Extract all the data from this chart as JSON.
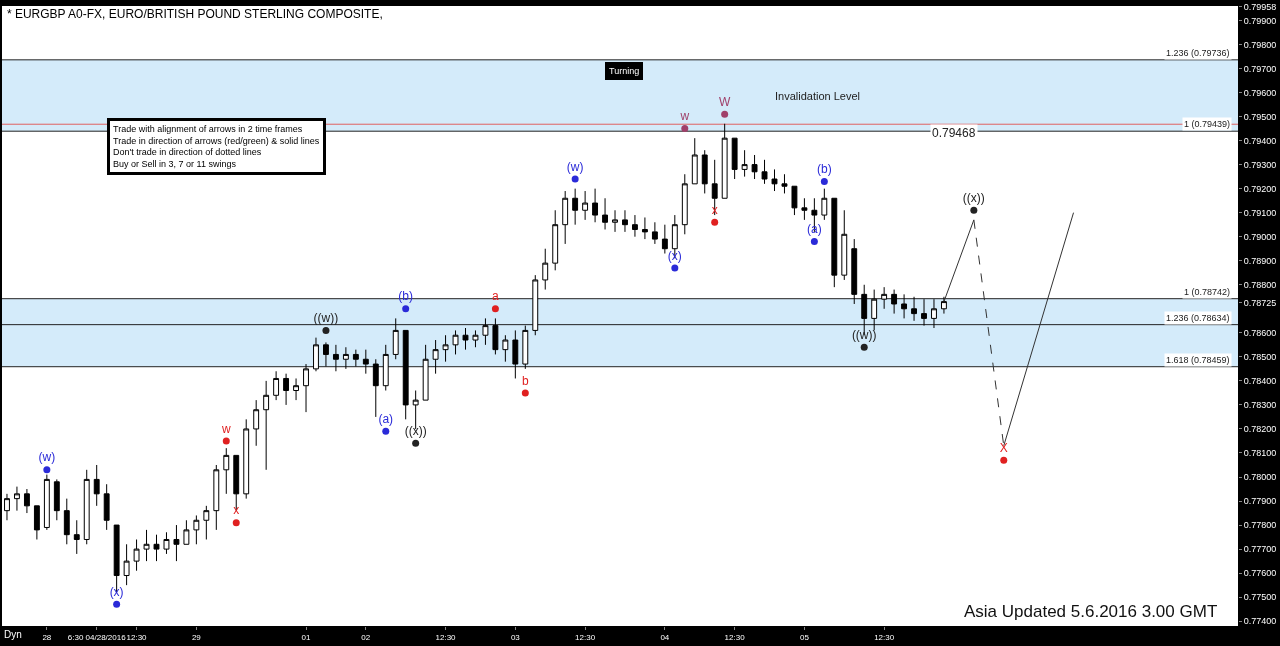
{
  "chart_data": {
    "type": "candlestick",
    "title": "* EURGBP A0-FX, EURO/BRITISH POUND STERLING COMPOSITE,",
    "color": "#000000",
    "categories": [
      null,
      null,
      null,
      null,
      "28",
      null,
      null,
      null,
      null,
      "6:30 04/28/2016",
      null,
      null,
      null,
      "12:30",
      null,
      null,
      null,
      null,
      null,
      "29",
      null,
      null,
      null,
      null,
      null,
      null,
      null,
      null,
      null,
      null,
      "01",
      null,
      null,
      null,
      null,
      null,
      "02",
      null,
      null,
      null,
      null,
      null,
      null,
      null,
      "12:30",
      null,
      null,
      null,
      null,
      null,
      null,
      "03",
      null,
      null,
      null,
      null,
      null,
      null,
      "12:30",
      null,
      null,
      null,
      null,
      null,
      null,
      null,
      "04",
      null,
      null,
      null,
      null,
      null,
      null,
      "12:30",
      null,
      null,
      null,
      null,
      null,
      null,
      "05",
      null,
      null,
      null,
      null,
      null,
      null,
      null,
      "12:30",
      null,
      null,
      null,
      null,
      null,
      null,
      null,
      null,
      null,
      null,
      null,
      null,
      null,
      null,
      null,
      null,
      null,
      null,
      null,
      null,
      null,
      null,
      null,
      null,
      null,
      null,
      null,
      null,
      null,
      null,
      null,
      null,
      null,
      null,
      null
    ],
    "ohlc": [
      [
        0.7786,
        0.7793,
        0.7782,
        0.7791
      ],
      [
        0.7791,
        0.7796,
        0.7786,
        0.7793
      ],
      [
        0.7793,
        0.7795,
        0.7785,
        0.7788
      ],
      [
        0.7788,
        0.7788,
        0.7774,
        0.7778
      ],
      [
        0.7779,
        0.7801,
        0.7778,
        0.7799
      ],
      [
        0.7798,
        0.7799,
        0.7782,
        0.7786
      ],
      [
        0.7786,
        0.7791,
        0.7772,
        0.7776
      ],
      [
        0.7776,
        0.7782,
        0.7768,
        0.7774
      ],
      [
        0.7774,
        0.7803,
        0.7772,
        0.7799
      ],
      [
        0.7799,
        0.7805,
        0.7788,
        0.7793
      ],
      [
        0.7793,
        0.7797,
        0.7778,
        0.7782
      ],
      [
        0.778,
        0.778,
        0.7752,
        0.7759
      ],
      [
        0.7759,
        0.7772,
        0.7755,
        0.7765
      ],
      [
        0.7765,
        0.7774,
        0.7761,
        0.777
      ],
      [
        0.777,
        0.7778,
        0.7765,
        0.7772
      ],
      [
        0.7772,
        0.7776,
        0.7765,
        0.777
      ],
      [
        0.777,
        0.7777,
        0.7768,
        0.7774
      ],
      [
        0.7774,
        0.778,
        0.7765,
        0.7772
      ],
      [
        0.7772,
        0.7782,
        0.7772,
        0.7778
      ],
      [
        0.7778,
        0.7784,
        0.7772,
        0.7782
      ],
      [
        0.7782,
        0.7788,
        0.7774,
        0.7786
      ],
      [
        0.7786,
        0.7805,
        0.7778,
        0.7803
      ],
      [
        0.7803,
        0.7812,
        0.7793,
        0.7809
      ],
      [
        0.7809,
        0.7809,
        0.7786,
        0.7793
      ],
      [
        0.7793,
        0.7824,
        0.7791,
        0.782
      ],
      [
        0.782,
        0.7832,
        0.7813,
        0.7828
      ],
      [
        0.7828,
        0.784,
        0.7803,
        0.7834
      ],
      [
        0.7834,
        0.7844,
        0.7832,
        0.7841
      ],
      [
        0.7841,
        0.7843,
        0.783,
        0.7836
      ],
      [
        0.7836,
        0.7841,
        0.7832,
        0.7838
      ],
      [
        0.7838,
        0.7847,
        0.7827,
        0.7845
      ],
      [
        0.7845,
        0.7858,
        0.7844,
        0.7855
      ],
      [
        0.7855,
        0.7856,
        0.7846,
        0.7851
      ],
      [
        0.7851,
        0.7855,
        0.7844,
        0.7849
      ],
      [
        0.7849,
        0.7854,
        0.7845,
        0.7851
      ],
      [
        0.7851,
        0.7853,
        0.7846,
        0.7849
      ],
      [
        0.7849,
        0.7853,
        0.7843,
        0.7847
      ],
      [
        0.7847,
        0.7849,
        0.7825,
        0.7838
      ],
      [
        0.7838,
        0.7855,
        0.7836,
        0.7851
      ],
      [
        0.7851,
        0.7866,
        0.7849,
        0.7861
      ],
      [
        0.7861,
        0.7861,
        0.7824,
        0.783
      ],
      [
        0.783,
        0.7836,
        0.782,
        0.7832
      ],
      [
        0.7832,
        0.7855,
        0.7832,
        0.7849
      ],
      [
        0.7849,
        0.7857,
        0.7843,
        0.7853
      ],
      [
        0.7853,
        0.7859,
        0.7848,
        0.7855
      ],
      [
        0.7855,
        0.7861,
        0.7851,
        0.7859
      ],
      [
        0.7859,
        0.7862,
        0.7853,
        0.7857
      ],
      [
        0.7857,
        0.7861,
        0.7854,
        0.7859
      ],
      [
        0.7859,
        0.7866,
        0.7855,
        0.7863
      ],
      [
        0.7863,
        0.7866,
        0.7851,
        0.7853
      ],
      [
        0.7853,
        0.7859,
        0.7848,
        0.7857
      ],
      [
        0.7857,
        0.7861,
        0.7841,
        0.7847
      ],
      [
        0.7847,
        0.7863,
        0.7845,
        0.7861
      ],
      [
        0.7861,
        0.7884,
        0.7859,
        0.7882
      ],
      [
        0.7882,
        0.7895,
        0.7878,
        0.7889
      ],
      [
        0.7889,
        0.7911,
        0.7886,
        0.7905
      ],
      [
        0.7905,
        0.7919,
        0.7897,
        0.7916
      ],
      [
        0.7916,
        0.792,
        0.7905,
        0.7911
      ],
      [
        0.7911,
        0.7919,
        0.7907,
        0.7914
      ],
      [
        0.7914,
        0.792,
        0.7906,
        0.7909
      ],
      [
        0.7909,
        0.7916,
        0.7903,
        0.7906
      ],
      [
        0.7906,
        0.7911,
        0.7902,
        0.7907
      ],
      [
        0.7907,
        0.7911,
        0.7902,
        0.7905
      ],
      [
        0.7905,
        0.7909,
        0.79,
        0.7903
      ],
      [
        0.7903,
        0.7908,
        0.7899,
        0.7902
      ],
      [
        0.7902,
        0.7906,
        0.7897,
        0.7899
      ],
      [
        0.7899,
        0.7905,
        0.7893,
        0.7895
      ],
      [
        0.7895,
        0.7909,
        0.7891,
        0.7905
      ],
      [
        0.7905,
        0.7926,
        0.7901,
        0.7922
      ],
      [
        0.7922,
        0.7941,
        0.7922,
        0.7934
      ],
      [
        0.7934,
        0.7936,
        0.7918,
        0.7922
      ],
      [
        0.7922,
        0.7932,
        0.7909,
        0.7916
      ],
      [
        0.7916,
        0.7947,
        0.7916,
        0.7941
      ],
      [
        0.7941,
        0.7941,
        0.7924,
        0.7928
      ],
      [
        0.7928,
        0.7936,
        0.7925,
        0.793
      ],
      [
        0.793,
        0.7934,
        0.7924,
        0.7927
      ],
      [
        0.7927,
        0.7932,
        0.7922,
        0.7924
      ],
      [
        0.7924,
        0.7928,
        0.7919,
        0.7922
      ],
      [
        0.7922,
        0.7926,
        0.7918,
        0.7921
      ],
      [
        0.7921,
        0.7921,
        0.7909,
        0.7912
      ],
      [
        0.7912,
        0.7916,
        0.7907,
        0.7911
      ],
      [
        0.7911,
        0.7916,
        0.7902,
        0.7909
      ],
      [
        0.7909,
        0.792,
        0.7907,
        0.7916
      ],
      [
        0.7916,
        0.7916,
        0.7879,
        0.7884
      ],
      [
        0.7884,
        0.7911,
        0.7882,
        0.7901
      ],
      [
        0.7895,
        0.7899,
        0.7872,
        0.7876
      ],
      [
        0.7876,
        0.788,
        0.7859,
        0.7866
      ],
      [
        0.7866,
        0.7878,
        0.7861,
        0.7874
      ],
      [
        0.7874,
        0.7879,
        0.787,
        0.7876
      ],
      [
        0.7876,
        0.7878,
        0.7868,
        0.7872
      ],
      [
        0.7872,
        0.7876,
        0.7866,
        0.787
      ],
      [
        0.787,
        0.7875,
        0.7865,
        0.7868
      ],
      [
        0.7868,
        0.7874,
        0.7863,
        0.7866
      ],
      [
        0.7866,
        0.7874,
        0.7862,
        0.787
      ],
      [
        0.787,
        0.7875,
        0.7868,
        0.7873
      ],
      null,
      null,
      null,
      null,
      null,
      null,
      null,
      null,
      null,
      null,
      null,
      null,
      null,
      null,
      null,
      null,
      null,
      null,
      null,
      null,
      null,
      null,
      null,
      null,
      null,
      null,
      null,
      null,
      null
    ],
    "series": [
      {
        "type": "line",
        "color": "#333333",
        "line_style": "solid",
        "values": [
          null,
          null,
          null,
          null,
          null,
          null,
          null,
          null,
          null,
          null,
          null,
          null,
          null,
          null,
          null,
          null,
          null,
          null,
          null,
          null,
          null,
          null,
          null,
          null,
          null,
          null,
          null,
          null,
          null,
          null,
          null,
          null,
          null,
          null,
          null,
          null,
          null,
          null,
          null,
          null,
          null,
          null,
          null,
          null,
          null,
          null,
          null,
          null,
          null,
          null,
          null,
          null,
          null,
          null,
          null,
          null,
          null,
          null,
          null,
          null,
          null,
          null,
          null,
          null,
          null,
          null,
          null,
          null,
          null,
          null,
          null,
          null,
          null,
          null,
          null,
          null,
          null,
          null,
          null,
          null,
          null,
          null,
          null,
          null,
          null,
          null,
          null,
          null,
          null,
          null,
          null,
          null,
          null,
          null,
          0.7873,
          null,
          null,
          0.7907,
          null,
          null,
          null,
          null,
          null,
          null,
          null,
          null,
          null,
          null,
          null,
          null,
          null,
          null,
          null,
          null,
          null,
          null,
          null,
          null,
          null,
          null,
          null,
          null,
          null,
          null
        ]
      },
      {
        "type": "line",
        "color": "#333333",
        "line_style": "dashed",
        "values": [
          null,
          null,
          null,
          null,
          null,
          null,
          null,
          null,
          null,
          null,
          null,
          null,
          null,
          null,
          null,
          null,
          null,
          null,
          null,
          null,
          null,
          null,
          null,
          null,
          null,
          null,
          null,
          null,
          null,
          null,
          null,
          null,
          null,
          null,
          null,
          null,
          null,
          null,
          null,
          null,
          null,
          null,
          null,
          null,
          null,
          null,
          null,
          null,
          null,
          null,
          null,
          null,
          null,
          null,
          null,
          null,
          null,
          null,
          null,
          null,
          null,
          null,
          null,
          null,
          null,
          null,
          null,
          null,
          null,
          null,
          null,
          null,
          null,
          null,
          null,
          null,
          null,
          null,
          null,
          null,
          null,
          null,
          null,
          null,
          null,
          null,
          null,
          null,
          null,
          null,
          null,
          null,
          null,
          null,
          null,
          null,
          null,
          0.7907,
          null,
          null,
          0.7813,
          null,
          null,
          null,
          null,
          null,
          null,
          null,
          null,
          null,
          null,
          null,
          null,
          null,
          null,
          null,
          null,
          null,
          null,
          null,
          null,
          null,
          null,
          null
        ]
      },
      {
        "type": "line",
        "color": "#333333",
        "line_style": "solid",
        "values": [
          null,
          null,
          null,
          null,
          null,
          null,
          null,
          null,
          null,
          null,
          null,
          null,
          null,
          null,
          null,
          null,
          null,
          null,
          null,
          null,
          null,
          null,
          null,
          null,
          null,
          null,
          null,
          null,
          null,
          null,
          null,
          null,
          null,
          null,
          null,
          null,
          null,
          null,
          null,
          null,
          null,
          null,
          null,
          null,
          null,
          null,
          null,
          null,
          null,
          null,
          null,
          null,
          null,
          null,
          null,
          null,
          null,
          null,
          null,
          null,
          null,
          null,
          null,
          null,
          null,
          null,
          null,
          null,
          null,
          null,
          null,
          null,
          null,
          null,
          null,
          null,
          null,
          null,
          null,
          null,
          null,
          null,
          null,
          null,
          null,
          null,
          null,
          null,
          null,
          null,
          null,
          null,
          null,
          null,
          null,
          null,
          null,
          null,
          null,
          null,
          0.7813,
          null,
          null,
          null,
          null,
          null,
          null,
          0.791,
          null,
          null,
          null,
          null,
          null,
          null,
          null,
          null,
          null,
          null,
          null,
          null,
          null,
          null,
          null,
          null
        ]
      },
      {
        "type": "scatter",
        "marker": "circle",
        "color": "#2a2ad8",
        "values": [
          null,
          null,
          null,
          null,
          0.7803,
          null,
          null,
          null,
          null,
          null,
          null,
          0.7747,
          null,
          null,
          null,
          null,
          null,
          null,
          null,
          null,
          null,
          null,
          null,
          null,
          null,
          null,
          null,
          null,
          null,
          null,
          null,
          null,
          null,
          null,
          null,
          null,
          null,
          null,
          0.7819,
          null,
          0.787,
          null,
          null,
          null,
          null,
          null,
          null,
          null,
          null,
          null,
          null,
          null,
          null,
          null,
          null,
          null,
          null,
          0.7924,
          null,
          null,
          null,
          null,
          null,
          null,
          null,
          null,
          null,
          0.7887,
          null,
          null,
          null,
          null,
          null,
          null,
          null,
          null,
          null,
          null,
          null,
          null,
          null,
          0.7898,
          0.7923,
          null,
          null,
          null,
          null,
          null,
          null,
          null,
          null,
          null,
          null,
          null,
          null,
          null,
          null,
          null,
          null,
          null,
          null,
          null,
          null,
          null,
          null,
          null,
          null,
          null,
          null,
          null,
          null,
          null,
          null,
          null,
          null,
          null,
          null,
          null,
          null,
          null,
          null,
          null,
          null,
          null
        ],
        "value_labels": [
          null,
          null,
          null,
          null,
          "(w)",
          null,
          null,
          null,
          null,
          null,
          null,
          "(x)",
          null,
          null,
          null,
          null,
          null,
          null,
          null,
          null,
          null,
          null,
          null,
          null,
          null,
          null,
          null,
          null,
          null,
          null,
          null,
          null,
          null,
          null,
          null,
          null,
          null,
          null,
          "(a)",
          null,
          "(b)",
          null,
          null,
          null,
          null,
          null,
          null,
          null,
          null,
          null,
          null,
          null,
          null,
          null,
          null,
          null,
          null,
          "(w)",
          null,
          null,
          null,
          null,
          null,
          null,
          null,
          null,
          null,
          "(x)",
          null,
          null,
          null,
          null,
          null,
          null,
          null,
          null,
          null,
          null,
          null,
          null,
          null,
          "(a)",
          "(b)",
          null,
          null,
          null,
          null,
          null,
          null,
          null,
          null,
          null,
          null,
          null,
          null,
          null,
          null,
          null,
          null,
          null,
          null,
          null,
          null,
          null,
          null,
          null,
          null,
          null,
          null,
          null,
          null,
          null,
          null,
          null,
          null,
          null,
          null,
          null,
          null,
          null,
          null,
          null,
          null,
          null
        ]
      },
      {
        "type": "scatter",
        "marker": "circle",
        "color": "#e02020",
        "values": [
          null,
          null,
          null,
          null,
          null,
          null,
          null,
          null,
          null,
          null,
          null,
          null,
          null,
          null,
          null,
          null,
          null,
          null,
          null,
          null,
          null,
          null,
          0.7815,
          0.7781,
          null,
          null,
          null,
          null,
          null,
          null,
          null,
          null,
          null,
          null,
          null,
          null,
          null,
          null,
          null,
          null,
          null,
          null,
          null,
          null,
          null,
          null,
          null,
          null,
          null,
          0.787,
          null,
          null,
          0.7835,
          null,
          null,
          null,
          null,
          null,
          null,
          null,
          null,
          null,
          null,
          null,
          null,
          null,
          null,
          null,
          null,
          null,
          null,
          0.7906,
          null,
          null,
          null,
          null,
          null,
          null,
          null,
          null,
          null,
          null,
          null,
          null,
          null,
          null,
          null,
          null,
          null,
          null,
          null,
          null,
          null,
          null,
          null,
          null,
          null,
          null,
          null,
          null,
          0.7807,
          null,
          null,
          null,
          null,
          null,
          null,
          null,
          null,
          null,
          null,
          null,
          null,
          null,
          null,
          null,
          null,
          null,
          null,
          null,
          null,
          null,
          null,
          null
        ],
        "value_labels": [
          null,
          null,
          null,
          null,
          null,
          null,
          null,
          null,
          null,
          null,
          null,
          null,
          null,
          null,
          null,
          null,
          null,
          null,
          null,
          null,
          null,
          null,
          "w",
          "x",
          null,
          null,
          null,
          null,
          null,
          null,
          null,
          null,
          null,
          null,
          null,
          null,
          null,
          null,
          null,
          null,
          null,
          null,
          null,
          null,
          null,
          null,
          null,
          null,
          null,
          "a",
          null,
          null,
          "b",
          null,
          null,
          null,
          null,
          null,
          null,
          null,
          null,
          null,
          null,
          null,
          null,
          null,
          null,
          null,
          null,
          null,
          null,
          "x",
          null,
          null,
          null,
          null,
          null,
          null,
          null,
          null,
          null,
          null,
          null,
          null,
          null,
          null,
          null,
          null,
          null,
          null,
          null,
          null,
          null,
          null,
          null,
          null,
          null,
          null,
          null,
          null,
          "X",
          null,
          null,
          null,
          null,
          null,
          null,
          null,
          null,
          null,
          null,
          null,
          null,
          null,
          null,
          null,
          null,
          null,
          null,
          null,
          null,
          null,
          null,
          null
        ]
      },
      {
        "type": "scatter",
        "marker": "circle",
        "color": "#a0406a",
        "values": [
          null,
          null,
          null,
          null,
          null,
          null,
          null,
          null,
          null,
          null,
          null,
          null,
          null,
          null,
          null,
          null,
          null,
          null,
          null,
          null,
          null,
          null,
          null,
          null,
          null,
          null,
          null,
          null,
          null,
          null,
          null,
          null,
          null,
          null,
          null,
          null,
          null,
          null,
          null,
          null,
          null,
          null,
          null,
          null,
          null,
          null,
          null,
          null,
          null,
          null,
          null,
          null,
          null,
          null,
          null,
          null,
          null,
          null,
          null,
          null,
          null,
          null,
          null,
          null,
          null,
          null,
          null,
          null,
          0.7945,
          null,
          null,
          null,
          0.7951,
          null,
          null,
          null,
          null,
          null,
          null,
          null,
          null,
          null,
          null,
          null,
          null,
          null,
          null,
          null,
          null,
          null,
          null,
          null,
          null,
          null,
          null,
          null,
          null,
          null,
          null,
          null,
          null,
          null,
          null,
          null,
          null,
          null,
          null,
          null,
          null,
          null,
          null,
          null,
          null,
          null,
          null,
          null,
          null,
          null,
          null,
          null,
          null,
          null,
          null,
          null
        ],
        "value_labels": [
          null,
          null,
          null,
          null,
          null,
          null,
          null,
          null,
          null,
          null,
          null,
          null,
          null,
          null,
          null,
          null,
          null,
          null,
          null,
          null,
          null,
          null,
          null,
          null,
          null,
          null,
          null,
          null,
          null,
          null,
          null,
          null,
          null,
          null,
          null,
          null,
          null,
          null,
          null,
          null,
          null,
          null,
          null,
          null,
          null,
          null,
          null,
          null,
          null,
          null,
          null,
          null,
          null,
          null,
          null,
          null,
          null,
          null,
          null,
          null,
          null,
          null,
          null,
          null,
          null,
          null,
          null,
          null,
          "w",
          null,
          null,
          null,
          "W",
          null,
          null,
          null,
          null,
          null,
          null,
          null,
          null,
          null,
          null,
          null,
          null,
          null,
          null,
          null,
          null,
          null,
          null,
          null,
          null,
          null,
          null,
          null,
          null,
          null,
          null,
          null,
          null,
          null,
          null,
          null,
          null,
          null,
          null,
          null,
          null,
          null,
          null,
          null,
          null,
          null,
          null,
          null,
          null,
          null,
          null,
          null,
          null,
          null,
          null,
          null
        ]
      },
      {
        "type": "scatter",
        "marker": "circle",
        "color": "#222222",
        "values": [
          null,
          null,
          null,
          null,
          null,
          null,
          null,
          null,
          null,
          null,
          null,
          null,
          null,
          null,
          null,
          null,
          null,
          null,
          null,
          null,
          null,
          null,
          null,
          null,
          null,
          null,
          null,
          null,
          null,
          null,
          null,
          null,
          0.7861,
          null,
          null,
          null,
          null,
          null,
          null,
          null,
          null,
          0.7814,
          null,
          null,
          null,
          null,
          null,
          null,
          null,
          null,
          null,
          null,
          null,
          null,
          null,
          null,
          null,
          null,
          null,
          null,
          null,
          null,
          null,
          null,
          null,
          null,
          null,
          null,
          null,
          null,
          null,
          null,
          null,
          null,
          null,
          null,
          null,
          null,
          null,
          null,
          null,
          null,
          null,
          null,
          null,
          null,
          0.7854,
          null,
          null,
          null,
          null,
          null,
          null,
          null,
          null,
          null,
          null,
          0.7911,
          null,
          null,
          null,
          null,
          null,
          null,
          null,
          null,
          null,
          null,
          null,
          null,
          null,
          null,
          null,
          null,
          null,
          null,
          null,
          null,
          null,
          null,
          null,
          null,
          null,
          null
        ],
        "value_labels": [
          null,
          null,
          null,
          null,
          null,
          null,
          null,
          null,
          null,
          null,
          null,
          null,
          null,
          null,
          null,
          null,
          null,
          null,
          null,
          null,
          null,
          null,
          null,
          null,
          null,
          null,
          null,
          null,
          null,
          null,
          null,
          null,
          "((w))",
          null,
          null,
          null,
          null,
          null,
          null,
          null,
          null,
          "((x))",
          null,
          null,
          null,
          null,
          null,
          null,
          null,
          null,
          null,
          null,
          null,
          null,
          null,
          null,
          null,
          null,
          null,
          null,
          null,
          null,
          null,
          null,
          null,
          null,
          null,
          null,
          null,
          null,
          null,
          null,
          null,
          null,
          null,
          null,
          null,
          null,
          null,
          null,
          null,
          null,
          null,
          null,
          null,
          null,
          "((w))",
          null,
          null,
          null,
          null,
          null,
          null,
          null,
          null,
          null,
          null,
          "((x))",
          null,
          null,
          null,
          null,
          null,
          null,
          null,
          null,
          null,
          null,
          null,
          null,
          null,
          null,
          null,
          null,
          null,
          null,
          null,
          null,
          null,
          null,
          null,
          null,
          null,
          null
        ]
      }
    ],
    "ref_lines": [
      {
        "axis": "y",
        "value": 0.79736,
        "label": "1.236 (0.79736)"
      },
      {
        "axis": "y",
        "value": 0.79439,
        "label": "1 (0.79439)"
      },
      {
        "axis": "y",
        "value": 0.79468,
        "label": "0.79468",
        "color": "#e06060"
      },
      {
        "axis": "y",
        "value": 0.78742,
        "label": "1 (0.78742)"
      },
      {
        "axis": "y",
        "value": 0.78634,
        "label": "1.236 (0.78634)"
      },
      {
        "axis": "y",
        "value": 0.78459,
        "label": "1.618 (0.78459)"
      }
    ],
    "bands": [
      {
        "axis": "y",
        "from": 0.79439,
        "to": 0.79736,
        "label": "Invalidation Level",
        "color": "#9fd3f5"
      },
      {
        "axis": "y",
        "from": 0.78459,
        "to": 0.78742,
        "label": null,
        "color": "#9fd3f5"
      }
    ],
    "ylim": [
      0.7738,
      0.7996
    ],
    "yticks": [
      {
        "value": 0.774,
        "label": "0.77400"
      },
      {
        "value": 0.775,
        "label": "0.77500"
      },
      {
        "value": 0.776,
        "label": "0.77600"
      },
      {
        "value": 0.777,
        "label": "0.77700"
      },
      {
        "value": 0.778,
        "label": "0.77800"
      },
      {
        "value": 0.779,
        "label": "0.77900"
      },
      {
        "value": 0.78,
        "label": "0.78000"
      },
      {
        "value": 0.781,
        "label": "0.78100"
      },
      {
        "value": 0.782,
        "label": "0.78200"
      },
      {
        "value": 0.783,
        "label": "0.78300"
      },
      {
        "value": 0.784,
        "label": "0.78400"
      },
      {
        "value": 0.785,
        "label": "0.78500"
      },
      {
        "value": 0.786,
        "label": "0.78600"
      },
      {
        "value": 0.78725,
        "label": "0.78725"
      },
      {
        "value": 0.788,
        "label": "0.78800"
      },
      {
        "value": 0.789,
        "label": "0.78900"
      },
      {
        "value": 0.79,
        "label": "0.79000"
      },
      {
        "value": 0.791,
        "label": "0.79100"
      },
      {
        "value": 0.792,
        "label": "0.79200"
      },
      {
        "value": 0.793,
        "label": "0.79300"
      },
      {
        "value": 0.794,
        "label": "0.79400"
      },
      {
        "value": 0.795,
        "label": "0.79500"
      },
      {
        "value": 0.796,
        "label": "0.79600"
      },
      {
        "value": 0.797,
        "label": "0.79700"
      },
      {
        "value": 0.798,
        "label": "0.79800"
      },
      {
        "value": 0.799,
        "label": "0.79900"
      },
      {
        "value": 0.79958,
        "label": "0.79958"
      }
    ],
    "grid": false,
    "annotations": [
      "Trade with alignment of arrows in 2 time frames\nTrade in direction of arrows (red/green) & solid lines\nDon't trade in direction of dotted lines\nBuy or Sell in 3, 7 or 11 swings",
      "Turning",
      "Asia Updated 5.6.2016 3.00 GMT",
      "Dyn"
    ]
  }
}
